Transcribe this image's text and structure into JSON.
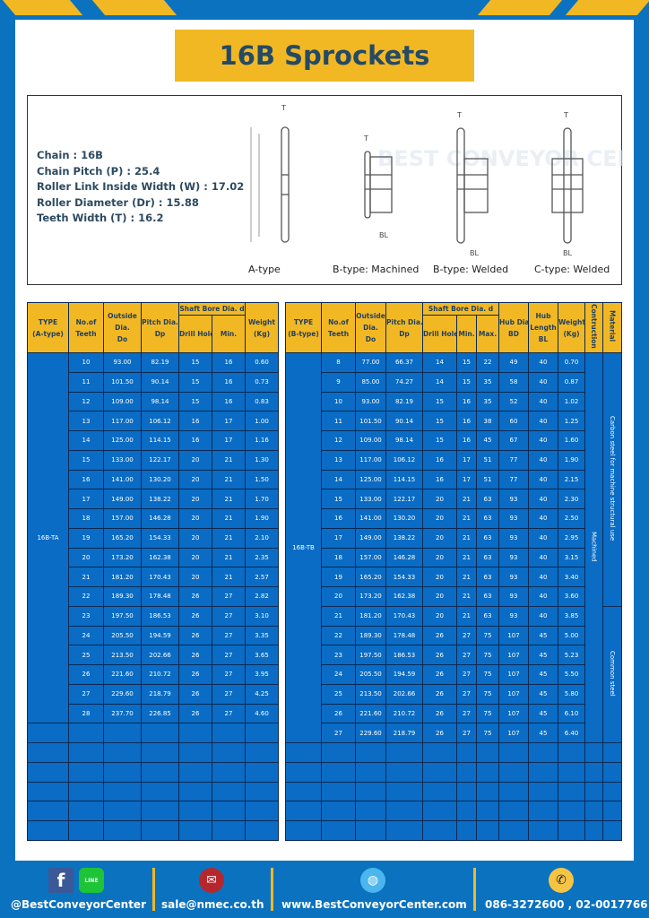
{
  "title": "16B Sprockets",
  "specs": [
    "Chain  :  16B",
    "Chain Pitch (P)  :  25.4",
    "Roller Link Inside Width (W)  :  17.02",
    "Roller Diameter (Dr)  : 15.88",
    "Teeth Width (T)  :  16.2"
  ],
  "diagram_captions": [
    "A-type",
    "B-type: Machined",
    "B-type: Welded",
    "C-type: Welded"
  ],
  "diagram_labels": {
    "t": "T",
    "do": "Do",
    "dp": "Dp",
    "d": "d",
    "bd": "BD",
    "bl": "BL"
  },
  "watermark": "BEST CONVEYOR CENTER",
  "table_a": {
    "headers": {
      "type": [
        "TYPE",
        "(A-type)"
      ],
      "teeth": [
        "No.of",
        "Teeth"
      ],
      "do": [
        "Outside",
        "Dia.",
        "Do"
      ],
      "dp": [
        "Pitch Dia.",
        "Dp"
      ],
      "bore": "Shaft Bore Dia. d",
      "drill": "Drill Hole",
      "min": "Min.",
      "weight": [
        "Weight",
        "(Kg)"
      ]
    },
    "type_value": "16B-TA",
    "rows": [
      [
        "10",
        "93.00",
        "82.19",
        "15",
        "16",
        "0.60"
      ],
      [
        "11",
        "101.50",
        "90.14",
        "15",
        "16",
        "0.73"
      ],
      [
        "12",
        "109.00",
        "98.14",
        "15",
        "16",
        "0.83"
      ],
      [
        "13",
        "117.00",
        "106.12",
        "16",
        "17",
        "1.00"
      ],
      [
        "14",
        "125.00",
        "114.15",
        "16",
        "17",
        "1.16"
      ],
      [
        "15",
        "133.00",
        "122.17",
        "20",
        "21",
        "1.30"
      ],
      [
        "16",
        "141.00",
        "130.20",
        "20",
        "21",
        "1.50"
      ],
      [
        "17",
        "149.00",
        "138.22",
        "20",
        "21",
        "1.70"
      ],
      [
        "18",
        "157.00",
        "146.28",
        "20",
        "21",
        "1.90"
      ],
      [
        "19",
        "165.20",
        "154.33",
        "20",
        "21",
        "2.10"
      ],
      [
        "20",
        "173.20",
        "162.38",
        "20",
        "21",
        "2.35"
      ],
      [
        "21",
        "181.20",
        "170.43",
        "20",
        "21",
        "2.57"
      ],
      [
        "22",
        "189.30",
        "178.48",
        "26",
        "27",
        "2.82"
      ],
      [
        "23",
        "197.50",
        "186.53",
        "26",
        "27",
        "3.10"
      ],
      [
        "24",
        "205.50",
        "194.59",
        "26",
        "27",
        "3.35"
      ],
      [
        "25",
        "213.50",
        "202.66",
        "26",
        "27",
        "3.65"
      ],
      [
        "26",
        "221.60",
        "210.72",
        "26",
        "27",
        "3.95"
      ],
      [
        "27",
        "229.60",
        "218.79",
        "26",
        "27",
        "4.25"
      ],
      [
        "28",
        "237.70",
        "226.85",
        "26",
        "27",
        "4.60"
      ]
    ]
  },
  "table_b": {
    "headers": {
      "type": [
        "TYPE",
        "(B-type)"
      ],
      "teeth": [
        "No.of",
        "Teeth"
      ],
      "do": [
        "Outside",
        "Dia.",
        "Do"
      ],
      "dp": [
        "Pitch Dia.",
        "Dp"
      ],
      "bore": "Shaft Bore Dia. d",
      "drill": "Drill Hole",
      "min": "Min.",
      "max": "Max.",
      "bd": [
        "Hub Dia.",
        "BD"
      ],
      "bl": [
        "Hub",
        "Length",
        "BL"
      ],
      "weight": [
        "Weight",
        "(Kg)"
      ],
      "construction": "Contruction",
      "material": "Material"
    },
    "type_value": "16B-TB",
    "construction_value": "Machined",
    "material_values": [
      "Carbon steel for machine structural use",
      "Common steel"
    ],
    "rows": [
      [
        "8",
        "77.00",
        "66.37",
        "14",
        "15",
        "22",
        "49",
        "40",
        "0.70"
      ],
      [
        "9",
        "85.00",
        "74.27",
        "14",
        "15",
        "35",
        "58",
        "40",
        "0.87"
      ],
      [
        "10",
        "93.00",
        "82.19",
        "15",
        "16",
        "35",
        "52",
        "40",
        "1.02"
      ],
      [
        "11",
        "101.50",
        "90.14",
        "15",
        "16",
        "38",
        "60",
        "40",
        "1.25"
      ],
      [
        "12",
        "109.00",
        "98.14",
        "15",
        "16",
        "45",
        "67",
        "40",
        "1.60"
      ],
      [
        "13",
        "117.00",
        "106.12",
        "16",
        "17",
        "51",
        "77",
        "40",
        "1.90"
      ],
      [
        "14",
        "125.00",
        "114.15",
        "16",
        "17",
        "51",
        "77",
        "40",
        "2.15"
      ],
      [
        "15",
        "133.00",
        "122.17",
        "20",
        "21",
        "63",
        "93",
        "40",
        "2.30"
      ],
      [
        "16",
        "141.00",
        "130.20",
        "20",
        "21",
        "63",
        "93",
        "40",
        "2.50"
      ],
      [
        "17",
        "149.00",
        "138.22",
        "20",
        "21",
        "63",
        "93",
        "40",
        "2.95"
      ],
      [
        "18",
        "157.00",
        "146.28",
        "20",
        "21",
        "63",
        "93",
        "40",
        "3.15"
      ],
      [
        "19",
        "165.20",
        "154.33",
        "20",
        "21",
        "63",
        "93",
        "40",
        "3.40"
      ],
      [
        "20",
        "173.20",
        "162.38",
        "20",
        "21",
        "63",
        "93",
        "40",
        "3.60"
      ],
      [
        "21",
        "181.20",
        "170.43",
        "20",
        "21",
        "63",
        "93",
        "40",
        "3.85"
      ],
      [
        "22",
        "189.30",
        "178.48",
        "26",
        "27",
        "75",
        "107",
        "45",
        "5.00"
      ],
      [
        "23",
        "197.50",
        "186.53",
        "26",
        "27",
        "75",
        "107",
        "45",
        "5.23"
      ],
      [
        "24",
        "205.50",
        "194.59",
        "26",
        "27",
        "75",
        "107",
        "45",
        "5.50"
      ],
      [
        "25",
        "213.50",
        "202.66",
        "26",
        "27",
        "75",
        "107",
        "45",
        "5.80"
      ],
      [
        "26",
        "221.60",
        "210.72",
        "26",
        "27",
        "75",
        "107",
        "45",
        "6.10"
      ],
      [
        "27",
        "229.60",
        "218.79",
        "26",
        "27",
        "75",
        "107",
        "45",
        "6.40"
      ]
    ]
  },
  "footer": {
    "social": "@BestConveyorCenter",
    "email": "sale@nmec.co.th",
    "website": "www.BestConveyorCenter.com",
    "phone": "086-3272600 , 02-0017766",
    "facebook_icon": "f",
    "line_icon": "LINE"
  },
  "colors": {
    "blue": "#0b72bf",
    "yellow": "#f2b824",
    "title_text": "#244a66"
  }
}
